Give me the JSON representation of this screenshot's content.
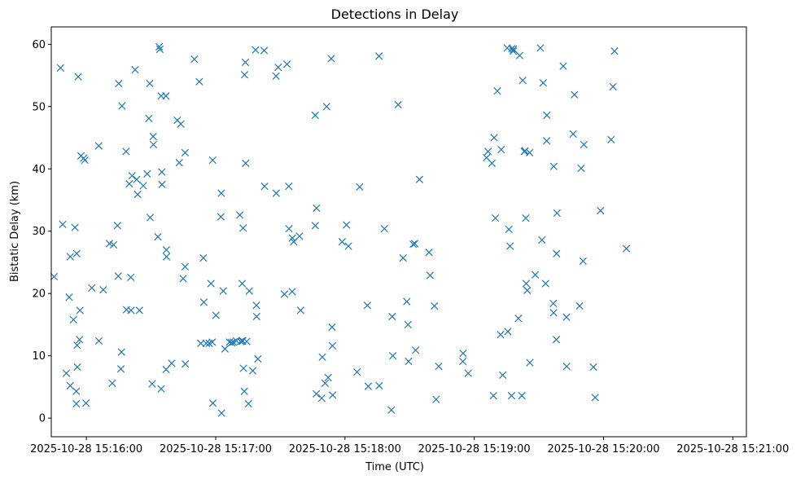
{
  "chart_data": {
    "type": "scatter",
    "title": "Detections in Delay",
    "xlabel": "Time (UTC)",
    "ylabel": "Bistatic Delay (km)",
    "x_unit": "seconds after 2025-10-28 15:16:00",
    "xlim": [
      -16.3,
      306.3
    ],
    "ylim": [
      -2.99,
      62.79
    ],
    "x_ticks": [
      0,
      60,
      120,
      180,
      240,
      300
    ],
    "x_tick_labels": [
      "2025-10-28 15:16:00",
      "2025-10-28 15:17:00",
      "2025-10-28 15:18:00",
      "2025-10-28 15:19:00",
      "2025-10-28 15:20:00",
      "2025-10-28 15:21:00"
    ],
    "y_ticks": [
      0,
      10,
      20,
      30,
      40,
      50,
      60
    ],
    "y_tick_labels": [
      "0",
      "10",
      "20",
      "30",
      "40",
      "50",
      "60"
    ],
    "grid": false,
    "marker": "x",
    "color": "#1f77b4",
    "series": [
      {
        "points": [
          [
            -15,
            22.7
          ],
          [
            -12,
            56.2
          ],
          [
            -11,
            31.1
          ],
          [
            -9.3,
            7.2
          ],
          [
            -8,
            19.4
          ],
          [
            -7.5,
            5.2
          ],
          [
            -7.5,
            25.9
          ],
          [
            -6,
            15.8
          ],
          [
            -5.3,
            30.6
          ],
          [
            -4.7,
            4.3
          ],
          [
            -4.7,
            2.3
          ],
          [
            -4.5,
            26.4
          ],
          [
            -4.3,
            11.7
          ],
          [
            -4.2,
            8.2
          ],
          [
            -3.8,
            54.8
          ],
          [
            -3.2,
            12.6
          ],
          [
            -3,
            17.3
          ],
          [
            -2.5,
            42.1
          ],
          [
            -1.3,
            41.7
          ],
          [
            -0.7,
            41.4
          ],
          [
            -0.2,
            2.4
          ],
          [
            2.5,
            20.9
          ],
          [
            5.7,
            43.7
          ],
          [
            5.8,
            12.4
          ],
          [
            7.8,
            20.6
          ],
          [
            10.7,
            28
          ],
          [
            12,
            5.6
          ],
          [
            12.6,
            27.8
          ],
          [
            14.4,
            30.9
          ],
          [
            14.8,
            22.8
          ],
          [
            15,
            53.7
          ],
          [
            16,
            7.9
          ],
          [
            16.3,
            10.6
          ],
          [
            16.5,
            50.1
          ],
          [
            18.4,
            42.8
          ],
          [
            18.6,
            17.4
          ],
          [
            19.9,
            37.6
          ],
          [
            20.6,
            22.6
          ],
          [
            20.7,
            17.3
          ],
          [
            21.2,
            38.9
          ],
          [
            22.6,
            55.9
          ],
          [
            23.3,
            38.3
          ],
          [
            23.8,
            35.9
          ],
          [
            24.6,
            17.3
          ],
          [
            26.4,
            37.3
          ],
          [
            28.2,
            39.2
          ],
          [
            29,
            48.1
          ],
          [
            29.4,
            53.7
          ],
          [
            29.6,
            32.2
          ],
          [
            30.5,
            5.5
          ],
          [
            31,
            45.2
          ],
          [
            31.1,
            43.9
          ],
          [
            33.2,
            29.1
          ],
          [
            33.8,
            59.6
          ],
          [
            34.1,
            59.2
          ],
          [
            34.7,
            51.7
          ],
          [
            34.7,
            4.7
          ],
          [
            35,
            39.5
          ],
          [
            35.1,
            37.5
          ],
          [
            36.9,
            51.7
          ],
          [
            37,
            7.8
          ],
          [
            37.1,
            27
          ],
          [
            37.2,
            25.9
          ],
          [
            39.6,
            8.8
          ],
          [
            42.2,
            47.8
          ],
          [
            43.1,
            41
          ],
          [
            43.8,
            47.2
          ],
          [
            44.9,
            22.4
          ],
          [
            45.8,
            42.6
          ],
          [
            45.8,
            24.3
          ],
          [
            45.9,
            8.7
          ],
          [
            50.1,
            57.6
          ],
          [
            52.4,
            54
          ],
          [
            53.1,
            12
          ],
          [
            54.3,
            25.7
          ],
          [
            54.5,
            18.6
          ],
          [
            55.6,
            12
          ],
          [
            57,
            12
          ],
          [
            57.8,
            21.6
          ],
          [
            58.4,
            12.2
          ],
          [
            58.6,
            41.4
          ],
          [
            58.7,
            2.4
          ],
          [
            60.1,
            16.5
          ],
          [
            62.4,
            32.3
          ],
          [
            62.6,
            36.1
          ],
          [
            62.7,
            0.8
          ],
          [
            63.5,
            20.4
          ],
          [
            64.3,
            11.1
          ],
          [
            66.4,
            12.2
          ],
          [
            67.4,
            12.1
          ],
          [
            68.2,
            12.2
          ],
          [
            69.6,
            12.4
          ],
          [
            71.2,
            32.6
          ],
          [
            71.6,
            12.3
          ],
          [
            72.2,
            12.4
          ],
          [
            72.3,
            21.6
          ],
          [
            72.6,
            12.4
          ],
          [
            72.7,
            30.5
          ],
          [
            72.9,
            8
          ],
          [
            73.4,
            55.1
          ],
          [
            73.3,
            4.3
          ],
          [
            73.8,
            57.1
          ],
          [
            73.9,
            40.9
          ],
          [
            74.4,
            12.3
          ],
          [
            75.2,
            2.3
          ],
          [
            75.6,
            20.4
          ],
          [
            77.2,
            7.6
          ],
          [
            78.5,
            59.1
          ],
          [
            78.9,
            18.1
          ],
          [
            79,
            16.3
          ],
          [
            79.6,
            9.5
          ],
          [
            82.5,
            59
          ],
          [
            82.7,
            37.2
          ],
          [
            88,
            54.9
          ],
          [
            88.1,
            36.1
          ],
          [
            89,
            56.3
          ],
          [
            91.9,
            19.9
          ],
          [
            93.1,
            56.8
          ],
          [
            93.9,
            37.2
          ],
          [
            94,
            30.4
          ],
          [
            95.5,
            20.3
          ],
          [
            95.6,
            28.9
          ],
          [
            96.2,
            28.3
          ],
          [
            98.9,
            29.2
          ],
          [
            99.4,
            17.3
          ],
          [
            106.2,
            30.9
          ],
          [
            106.2,
            48.6
          ],
          [
            106.7,
            3.9
          ],
          [
            106.8,
            33.7
          ],
          [
            109.2,
            3.2
          ],
          [
            109.5,
            9.8
          ],
          [
            110.8,
            5.6
          ],
          [
            111.5,
            50
          ],
          [
            112.2,
            6.5
          ],
          [
            113.6,
            57.7
          ],
          [
            114,
            14.6
          ],
          [
            114.2,
            11.6
          ],
          [
            114.3,
            3.7
          ],
          [
            118.7,
            28.3
          ],
          [
            120.7,
            31
          ],
          [
            121.6,
            27.6
          ],
          [
            125.6,
            7.4
          ],
          [
            126.8,
            37.1
          ],
          [
            130.4,
            18.1
          ],
          [
            130.8,
            5.1
          ],
          [
            135.8,
            58.1
          ],
          [
            135.9,
            5.2
          ],
          [
            138.3,
            30.4
          ],
          [
            141.5,
            1.3
          ],
          [
            141.9,
            16.3
          ],
          [
            142.2,
            10
          ],
          [
            144.7,
            50.3
          ],
          [
            147,
            25.7
          ],
          [
            148.7,
            18.7
          ],
          [
            149.3,
            15
          ],
          [
            149.5,
            9.1
          ],
          [
            151.7,
            27.9
          ],
          [
            152.4,
            28
          ],
          [
            152.8,
            10.9
          ],
          [
            154.6,
            38.3
          ],
          [
            159,
            26.6
          ],
          [
            159.5,
            22.9
          ],
          [
            161.5,
            18
          ],
          [
            162.3,
            3
          ],
          [
            163.5,
            8.3
          ],
          [
            174.8,
            10.4
          ],
          [
            174.7,
            9.1
          ],
          [
            177.2,
            7.2
          ],
          [
            185.7,
            41.8
          ],
          [
            186.4,
            42.8
          ],
          [
            188.2,
            40.9
          ],
          [
            188.9,
            3.6
          ],
          [
            189.2,
            45
          ],
          [
            189.8,
            32.1
          ],
          [
            190.7,
            52.5
          ],
          [
            192.2,
            13.4
          ],
          [
            192.5,
            43.1
          ],
          [
            193.2,
            6.9
          ],
          [
            195.3,
            59.4
          ],
          [
            195.6,
            13.9
          ],
          [
            196.1,
            30.3
          ],
          [
            196.6,
            27.6
          ],
          [
            197.3,
            3.6
          ],
          [
            197.5,
            59.3
          ],
          [
            198.1,
            58.9
          ],
          [
            198.2,
            59.2
          ],
          [
            200.5,
            16
          ],
          [
            201.1,
            58.2
          ],
          [
            202.1,
            3.6
          ],
          [
            202.5,
            54.2
          ],
          [
            203.2,
            42.8
          ],
          [
            203.6,
            42.9
          ],
          [
            203.9,
            32.1
          ],
          [
            204.1,
            21.6
          ],
          [
            204.6,
            20.5
          ],
          [
            205.7,
            42.6
          ],
          [
            205.8,
            8.9
          ],
          [
            208.3,
            23
          ],
          [
            210.7,
            59.4
          ],
          [
            211.4,
            28.6
          ],
          [
            212,
            53.8
          ],
          [
            213.1,
            21.6
          ],
          [
            213.6,
            44.5
          ],
          [
            213.7,
            48.6
          ],
          [
            216.7,
            18.4
          ],
          [
            216.8,
            16.9
          ],
          [
            216.9,
            40.4
          ],
          [
            218.1,
            12.6
          ],
          [
            218.2,
            26.4
          ],
          [
            218.4,
            32.9
          ],
          [
            221.3,
            56.5
          ],
          [
            222.8,
            16.2
          ],
          [
            222.9,
            8.3
          ],
          [
            225.9,
            45.6
          ],
          [
            226.5,
            51.9
          ],
          [
            228.9,
            18
          ],
          [
            229.6,
            40.1
          ],
          [
            230.5,
            25.2
          ],
          [
            230.9,
            43.9
          ],
          [
            235.3,
            8.2
          ],
          [
            236.1,
            3.3
          ],
          [
            238.6,
            33.3
          ],
          [
            243.5,
            44.7
          ],
          [
            244.4,
            53.2
          ],
          [
            245.1,
            58.9
          ],
          [
            250.6,
            27.2
          ]
        ]
      }
    ]
  }
}
